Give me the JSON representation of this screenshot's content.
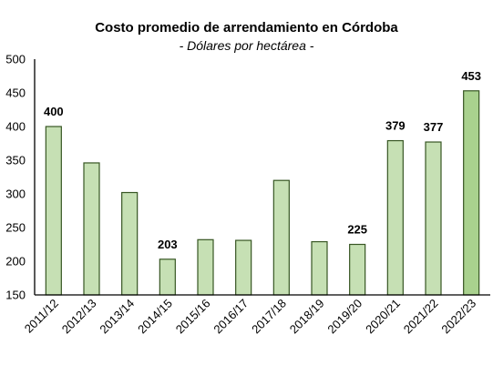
{
  "chart_data": {
    "type": "bar",
    "title": "Costo promedio de arrendamiento en Córdoba",
    "subtitle": "- Dólares por hectárea -",
    "xlabel": "",
    "ylabel": "",
    "categories": [
      "2011/12",
      "2012/13",
      "2013/14",
      "2014/15",
      "2015/16",
      "2016/17",
      "2017/18",
      "2018/19",
      "2019/20",
      "2020/21",
      "2021/22",
      "2022/23"
    ],
    "values": [
      400,
      346,
      302,
      203,
      232,
      231,
      320,
      229,
      225,
      379,
      377,
      453
    ],
    "data_labels": [
      "400",
      "",
      "",
      "203",
      "",
      "",
      "",
      "",
      "225",
      "379",
      "377",
      "453"
    ],
    "ylim": [
      150,
      500
    ],
    "yticks": [
      150,
      200,
      250,
      300,
      350,
      400,
      450,
      500
    ],
    "grid": false,
    "legend": "none",
    "colors": {
      "bar_fill": "#c6e0b4",
      "bar_fill_highlight": "#a9d18e",
      "bar_stroke": "#375623",
      "axis": "#000000"
    }
  }
}
